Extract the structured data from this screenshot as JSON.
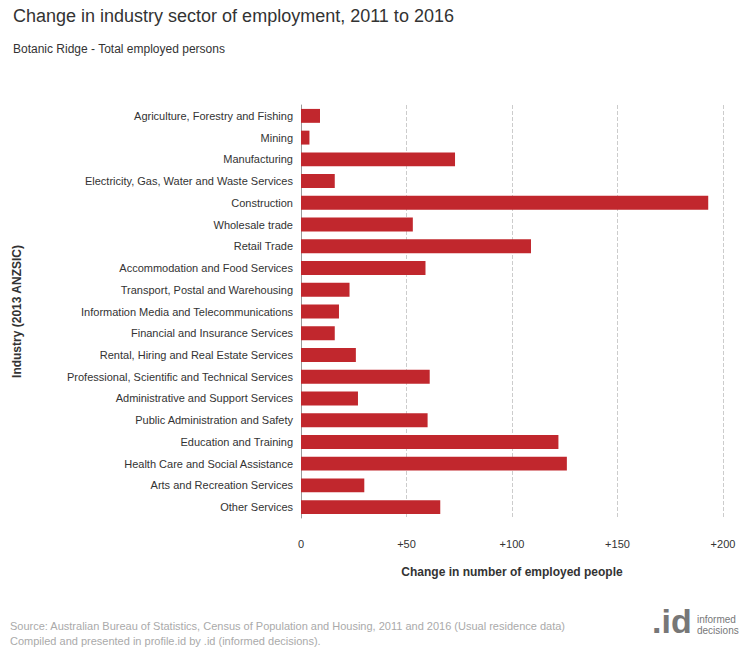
{
  "chart_data": {
    "type": "bar",
    "orientation": "horizontal",
    "title": "Change in industry sector of employment, 2011 to 2016",
    "subtitle": "Botanic Ridge - Total employed persons",
    "x_label": "Change in number of employed people",
    "y_label": "Industry (2013 ANZSIC)",
    "categories": [
      "Agriculture, Forestry and Fishing",
      "Mining",
      "Manufacturing",
      "Electricity, Gas, Water and Waste Services",
      "Construction",
      "Wholesale trade",
      "Retail Trade",
      "Accommodation and Food Services",
      "Transport, Postal and Warehousing",
      "Information Media and Telecommunications",
      "Financial and Insurance Services",
      "Rental, Hiring and Real Estate Services",
      "Professional, Scientific and Technical Services",
      "Administrative and Support Services",
      "Public Administration and Safety",
      "Education and Training",
      "Health Care and Social Assistance",
      "Arts and Recreation Services",
      "Other Services"
    ],
    "values": [
      9,
      4,
      73,
      16,
      193,
      53,
      109,
      59,
      23,
      18,
      16,
      26,
      61,
      27,
      60,
      122,
      126,
      30,
      66
    ],
    "color": "#c1272d",
    "xlim": [
      0,
      200
    ],
    "xticks": [
      0,
      {
        "value": 50,
        "label": "+50"
      },
      {
        "value": 100,
        "label": "+100"
      },
      {
        "value": 150,
        "label": "+150"
      },
      {
        "value": 200,
        "label": "+200"
      }
    ],
    "grid": true,
    "data_labels": false,
    "source": [
      "Source: Australian Bureau of Statistics, Census of Population and Housing, 2011 and 2016 (Usual residence data)",
      "Compiled and presented in profile.id by .id (informed decisions)."
    ],
    "logo": {
      "mark": ".id",
      "text": "informed decisions"
    }
  }
}
